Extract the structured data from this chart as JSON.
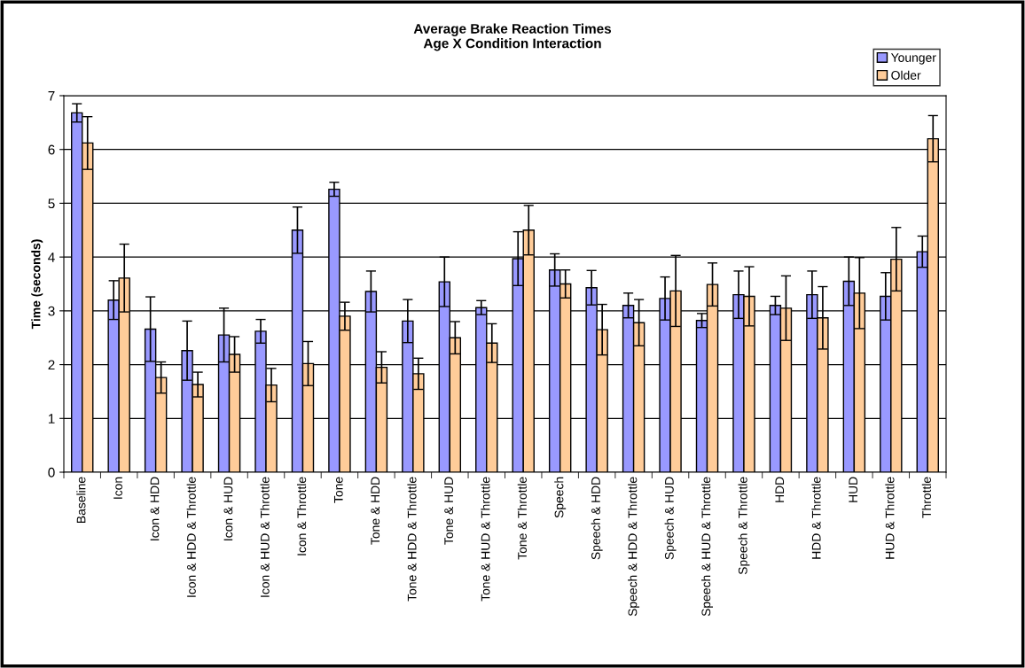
{
  "chart_data": {
    "type": "bar",
    "title": "Average Brake Reaction Times\nAge X Condition Interaction",
    "ylabel": "Time (seconds)",
    "categories": [
      "Baseline",
      "Icon",
      "Icon & HDD",
      "Icon & HDD & Throttle",
      "Icon & HUD",
      "Icon & HUD & Throttle",
      "Icon & Throttle",
      "Tone",
      "Tone & HDD",
      "Tone & HDD & Throttle",
      "Tone & HUD",
      "Tone & HUD & Throttle",
      "Tone & Throttle",
      "Speech",
      "Speech & HDD",
      "Speech & HDD & Throttle",
      "Speech & HUD",
      "Speech & HUD & Throttle",
      "Speech & Throttle",
      "HDD",
      "HDD & Throttle",
      "HUD",
      "HUD & Throttle",
      "Throttle"
    ],
    "series": [
      {
        "name": "Younger",
        "color": "#9999ff",
        "values": [
          6.68,
          3.2,
          2.66,
          2.26,
          2.55,
          2.62,
          4.5,
          5.26,
          3.36,
          2.81,
          3.54,
          3.06,
          3.97,
          3.76,
          3.43,
          3.1,
          3.23,
          2.82,
          3.3,
          3.1,
          3.3,
          3.55,
          3.27,
          4.1
        ],
        "errors": [
          0.17,
          0.36,
          0.6,
          0.55,
          0.5,
          0.22,
          0.43,
          0.13,
          0.38,
          0.4,
          0.46,
          0.13,
          0.5,
          0.3,
          0.32,
          0.23,
          0.4,
          0.13,
          0.44,
          0.17,
          0.44,
          0.45,
          0.44,
          0.29
        ]
      },
      {
        "name": "Older",
        "color": "#ffcc99",
        "values": [
          6.12,
          3.61,
          1.76,
          1.63,
          2.19,
          1.62,
          2.02,
          2.9,
          1.95,
          1.83,
          2.5,
          2.4,
          4.5,
          3.5,
          2.65,
          2.78,
          3.37,
          3.49,
          3.27,
          3.05,
          2.87,
          3.33,
          3.96,
          6.2
        ],
        "errors": [
          0.49,
          0.63,
          0.29,
          0.23,
          0.33,
          0.31,
          0.41,
          0.26,
          0.29,
          0.29,
          0.3,
          0.36,
          0.46,
          0.26,
          0.47,
          0.43,
          0.66,
          0.4,
          0.55,
          0.6,
          0.58,
          0.66,
          0.59,
          0.43
        ]
      }
    ],
    "ylim": [
      0,
      7
    ],
    "yticks": [
      0,
      1,
      2,
      3,
      4,
      5,
      6,
      7
    ],
    "grid": "y",
    "legend": "top right"
  }
}
